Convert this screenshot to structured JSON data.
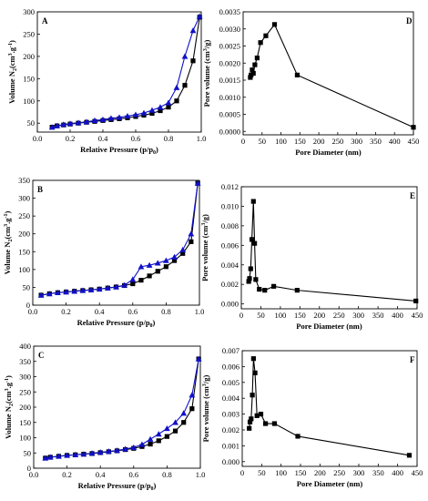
{
  "chart_data": [
    {
      "id": "A",
      "type": "line",
      "panel_label": "A",
      "xlabel": "Relative Pressure (p/p",
      "xlabel_sub": "0",
      "xlabel_tail": ")",
      "ylabel_parts": [
        "Volume N",
        "2",
        "(cm",
        "3",
        ".g",
        "-1",
        ")"
      ],
      "xlim": [
        0.0,
        1.0
      ],
      "ylim": [
        30,
        300
      ],
      "xticks": [
        "0.0",
        "0.2",
        "0.4",
        "0.6",
        "0.8",
        "1.0"
      ],
      "yticks": [
        "50",
        "100",
        "150",
        "200",
        "250",
        "300"
      ],
      "series": [
        {
          "marker": "square",
          "color": "#000000",
          "x": [
            0.09,
            0.12,
            0.16,
            0.2,
            0.25,
            0.3,
            0.35,
            0.4,
            0.45,
            0.5,
            0.55,
            0.6,
            0.65,
            0.7,
            0.75,
            0.8,
            0.85,
            0.9,
            0.95,
            0.99
          ],
          "y": [
            41,
            44,
            46,
            48,
            50,
            52,
            54,
            56,
            58,
            60,
            62,
            65,
            68,
            72,
            78,
            86,
            100,
            135,
            190,
            288
          ]
        },
        {
          "marker": "triangle",
          "color": "#1010c8",
          "x": [
            0.09,
            0.12,
            0.16,
            0.2,
            0.25,
            0.3,
            0.35,
            0.4,
            0.45,
            0.5,
            0.55,
            0.6,
            0.65,
            0.7,
            0.75,
            0.8,
            0.85,
            0.9,
            0.95,
            0.99
          ],
          "y": [
            41,
            44,
            47,
            49,
            51,
            53,
            56,
            58,
            61,
            63,
            66,
            69,
            73,
            79,
            86,
            96,
            130,
            200,
            258,
            290
          ]
        }
      ]
    },
    {
      "id": "D",
      "type": "line",
      "panel_label": "D",
      "xlabel": "Pore Diameter (nm)",
      "ylabel_parts": [
        "Pore volume (cm",
        "3",
        "/g)"
      ],
      "xlim": [
        0,
        450
      ],
      "ylim": [
        -0.0001,
        0.0035
      ],
      "xticks": [
        "0",
        "50",
        "100",
        "150",
        "200",
        "250",
        "300",
        "350",
        "400",
        "450"
      ],
      "yticks": [
        "0.0000",
        "0.0005",
        "0.0010",
        "0.0015",
        "0.0020",
        "0.0025",
        "0.0030",
        "0.0035"
      ],
      "series": [
        {
          "marker": "square",
          "color": "#000000",
          "x": [
            19,
            21,
            24,
            27,
            31,
            37,
            46,
            60,
            83,
            143,
            450
          ],
          "y": [
            0.00158,
            0.00165,
            0.0018,
            0.0017,
            0.00195,
            0.00215,
            0.0026,
            0.0028,
            0.00313,
            0.00165,
            0.00012
          ]
        }
      ]
    },
    {
      "id": "B",
      "type": "line",
      "panel_label": "B",
      "xlabel": "Relative Pressure (p/p",
      "xlabel_sub": "0",
      "xlabel_tail": ")",
      "ylabel_parts": [
        "Volume N",
        "2",
        "(cm",
        "3",
        ".g",
        "-1",
        ")"
      ],
      "xlim": [
        0.0,
        1.0
      ],
      "ylim": [
        0,
        350
      ],
      "xticks": [
        "0.0",
        "0.2",
        "0.4",
        "0.6",
        "0.8",
        "1.0"
      ],
      "yticks": [
        "0",
        "50",
        "100",
        "150",
        "200",
        "250",
        "300",
        "350"
      ],
      "series": [
        {
          "marker": "square",
          "color": "#000000",
          "x": [
            0.05,
            0.1,
            0.15,
            0.2,
            0.25,
            0.3,
            0.35,
            0.4,
            0.45,
            0.5,
            0.55,
            0.6,
            0.65,
            0.7,
            0.75,
            0.8,
            0.85,
            0.9,
            0.95,
            0.99
          ],
          "y": [
            28,
            32,
            35,
            37,
            39,
            41,
            43,
            45,
            48,
            51,
            55,
            60,
            70,
            82,
            95,
            108,
            125,
            145,
            178,
            342
          ]
        },
        {
          "marker": "triangle",
          "color": "#1010c8",
          "x": [
            0.05,
            0.1,
            0.15,
            0.2,
            0.25,
            0.3,
            0.35,
            0.4,
            0.45,
            0.5,
            0.55,
            0.6,
            0.65,
            0.7,
            0.75,
            0.8,
            0.85,
            0.9,
            0.95,
            0.99
          ],
          "y": [
            28,
            32,
            35,
            37,
            39,
            41,
            43,
            45,
            48,
            51,
            56,
            72,
            108,
            112,
            118,
            125,
            135,
            155,
            200,
            342
          ]
        }
      ]
    },
    {
      "id": "E",
      "type": "line",
      "panel_label": "E",
      "xlabel": "Pore Diameter (nm)",
      "ylabel_parts": [
        "Pore volume (cm",
        "3",
        "/g)"
      ],
      "xlim": [
        0,
        450
      ],
      "ylim": [
        -0.0005,
        0.012
      ],
      "xticks": [
        "0",
        "50",
        "100",
        "150",
        "200",
        "250",
        "300",
        "350",
        "400",
        "450"
      ],
      "yticks": [
        "0.000",
        "0.002",
        "0.004",
        "0.006",
        "0.008",
        "0.010",
        "0.012"
      ],
      "series": [
        {
          "marker": "square",
          "color": "#000000",
          "x": [
            19,
            21,
            24,
            27,
            31,
            34,
            37,
            46,
            60,
            83,
            143,
            447
          ],
          "y": [
            0.0023,
            0.0026,
            0.0036,
            0.0066,
            0.0105,
            0.0062,
            0.0025,
            0.0015,
            0.0014,
            0.0018,
            0.0014,
            0.0003
          ]
        }
      ]
    },
    {
      "id": "C",
      "type": "line",
      "panel_label": "C",
      "xlabel": "Relative Pressure (p/p",
      "xlabel_sub": "0",
      "xlabel_tail": ")",
      "ylabel_parts": [
        "Volume N",
        "2",
        "(cm",
        "3",
        ".g",
        "-1",
        ")"
      ],
      "xlim": [
        0.0,
        1.0
      ],
      "ylim": [
        0,
        400
      ],
      "xticks": [
        "0.0",
        "0.2",
        "0.4",
        "0.6",
        "0.8",
        "1.0"
      ],
      "yticks": [
        "0",
        "50",
        "100",
        "150",
        "200",
        "250",
        "300",
        "350",
        "400"
      ],
      "series": [
        {
          "marker": "square",
          "color": "#000000",
          "x": [
            0.07,
            0.1,
            0.15,
            0.2,
            0.25,
            0.3,
            0.35,
            0.4,
            0.45,
            0.5,
            0.55,
            0.6,
            0.65,
            0.7,
            0.75,
            0.8,
            0.85,
            0.9,
            0.95,
            0.99
          ],
          "y": [
            33,
            36,
            39,
            42,
            44,
            46,
            48,
            51,
            54,
            57,
            61,
            65,
            71,
            79,
            90,
            104,
            122,
            150,
            195,
            358
          ]
        },
        {
          "marker": "triangle",
          "color": "#1010c8",
          "x": [
            0.07,
            0.1,
            0.15,
            0.2,
            0.25,
            0.3,
            0.35,
            0.4,
            0.45,
            0.5,
            0.55,
            0.6,
            0.65,
            0.7,
            0.75,
            0.8,
            0.85,
            0.9,
            0.95,
            0.99
          ],
          "y": [
            33,
            36,
            39,
            42,
            44,
            46,
            49,
            52,
            55,
            58,
            63,
            68,
            78,
            95,
            112,
            130,
            150,
            180,
            240,
            358
          ]
        }
      ]
    },
    {
      "id": "F",
      "type": "line",
      "panel_label": "F",
      "xlabel": "Pore Diameter (nm)",
      "ylabel_parts": [
        "Pore volume (cm",
        "3",
        "/g)"
      ],
      "xlim": [
        0,
        450
      ],
      "ylim": [
        -0.0003,
        0.007
      ],
      "xticks": [
        "0",
        "50",
        "100",
        "150",
        "200",
        "250",
        "300",
        "350",
        "400",
        "450"
      ],
      "yticks": [
        "0.000",
        "0.001",
        "0.002",
        "0.003",
        "0.004",
        "0.005",
        "0.006",
        "0.007"
      ],
      "series": [
        {
          "marker": "square",
          "color": "#000000",
          "x": [
            18,
            20,
            23,
            26,
            29,
            33,
            38,
            48,
            60,
            83,
            143,
            430
          ],
          "y": [
            0.0021,
            0.0025,
            0.0027,
            0.0042,
            0.0065,
            0.0056,
            0.0029,
            0.003,
            0.0024,
            0.0024,
            0.0016,
            0.0004
          ]
        }
      ]
    }
  ]
}
